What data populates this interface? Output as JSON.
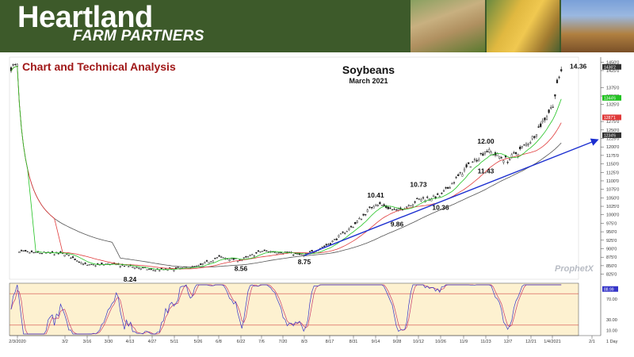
{
  "header": {
    "brand_line1": "Heartland",
    "brand_line2": "FARM PARTNERS",
    "section_title": "Chart and Technical Analysis"
  },
  "colors": {
    "banner": "#3d5a2a",
    "section_title": "#a01818",
    "price_bar": "#1a1a1a",
    "ma_green": "#22c322",
    "ma_red": "#e03a3a",
    "ma_gray": "#555555",
    "trendline": "#1c2fd0",
    "oscillator_bg": "#fdf1d0",
    "stoch_k": "#3535c8",
    "stoch_d": "#c83a6a"
  },
  "chart_data": [
    {
      "type": "candlestick",
      "title": "Soybeans",
      "subtitle": "March 2021",
      "y_unit": "cents per bushel",
      "ylim": [
        810,
        1460
      ],
      "y_ticks": [
        "825'0",
        "850'0",
        "875'0",
        "900'0",
        "925'0",
        "950'0",
        "975'0",
        "1000'0",
        "1025'0",
        "1050'0",
        "1075'0",
        "1100'0",
        "1125'0",
        "1150'0",
        "1175'0",
        "1200'0",
        "1225'0",
        "1250'0",
        "1275'0",
        "1325'0",
        "1350'0",
        "1375'0",
        "1425'0",
        "1450'0"
      ],
      "x_ticks": [
        "2/3/2020",
        "3/2",
        "3/16",
        "3/30",
        "4/13",
        "4/27",
        "5/11",
        "5/26",
        "6/8",
        "6/22",
        "7/6",
        "7/20",
        "8/3",
        "8/17",
        "8/31",
        "9/14",
        "9/28",
        "10/12",
        "10/26",
        "11/9",
        "11/23",
        "12/7",
        "12/21",
        "1/4/2021",
        "2/1"
      ],
      "x_axis_note": "1 Day",
      "closes_keypoints": [
        {
          "label": "2/3/2020",
          "value": 890
        },
        {
          "label": "3/2",
          "value": 885
        },
        {
          "label": "3/16",
          "value": 850
        },
        {
          "label": "3/30",
          "value": 855
        },
        {
          "label": "4/13",
          "value": 848
        },
        {
          "label": "4/27",
          "value": 837
        },
        {
          "label": "5/11",
          "value": 840
        },
        {
          "label": "5/26",
          "value": 848
        },
        {
          "label": "6/8",
          "value": 875
        },
        {
          "label": "6/22",
          "value": 866
        },
        {
          "label": "7/6",
          "value": 893
        },
        {
          "label": "7/20",
          "value": 890
        },
        {
          "label": "8/3",
          "value": 880
        },
        {
          "label": "8/17",
          "value": 915
        },
        {
          "label": "8/31",
          "value": 968
        },
        {
          "label": "9/14",
          "value": 1035
        },
        {
          "label": "9/28",
          "value": 1010
        },
        {
          "label": "10/12",
          "value": 1045
        },
        {
          "label": "10/26",
          "value": 1055
        },
        {
          "label": "11/9",
          "value": 1130
        },
        {
          "label": "11/23",
          "value": 1190
        },
        {
          "label": "12/7",
          "value": 1160
        },
        {
          "label": "12/21",
          "value": 1220
        },
        {
          "label": "1/4/2021",
          "value": 1320
        },
        {
          "label": "latest",
          "value": 1436
        }
      ],
      "moving_average_end_values": {
        "green": 1344.6,
        "red": 1287.1,
        "gray": 1234.6
      },
      "price_tags": [
        {
          "text": "1436'2",
          "value": 1436,
          "bg": "#333333",
          "fg": "#ffffff"
        },
        {
          "text": "1344'6",
          "value": 1344.6,
          "bg": "#22c322",
          "fg": "#ffffff"
        },
        {
          "text": "1287'1",
          "value": 1287.1,
          "bg": "#e03a3a",
          "fg": "#ffffff"
        },
        {
          "text": "1234'6",
          "value": 1234.6,
          "bg": "#333333",
          "fg": "#ffffff"
        }
      ],
      "annotations": [
        {
          "text": "8.24",
          "x_label": "4/13",
          "price": 824,
          "pos": "below"
        },
        {
          "text": "8.56",
          "x_label": "6/22",
          "price": 856,
          "pos": "below"
        },
        {
          "text": "8.75",
          "x_label": "8/3",
          "price": 875,
          "pos": "below"
        },
        {
          "text": "10.41",
          "x_label": "9/14",
          "price": 1041,
          "pos": "above"
        },
        {
          "text": "9.86",
          "x_label": "9/28",
          "price": 986,
          "pos": "below"
        },
        {
          "text": "10.73",
          "x_label": "10/12",
          "price": 1073,
          "pos": "above"
        },
        {
          "text": "10.36",
          "x_label": "10/26",
          "price": 1036,
          "pos": "below"
        },
        {
          "text": "12.00",
          "x_label": "11/23",
          "price": 1200,
          "pos": "above"
        },
        {
          "text": "11.43",
          "x_label": "11/23",
          "price": 1143,
          "pos": "below"
        },
        {
          "text": "14.36",
          "x_label": "latest",
          "price": 1436,
          "pos": "right"
        }
      ],
      "trendline": {
        "from": {
          "x_label": "8/3",
          "price": 880
        },
        "to": {
          "x_label": "2/1",
          "price": 1220
        }
      }
    },
    {
      "type": "line",
      "name": "stochastic",
      "ylim": [
        0,
        100
      ],
      "y_ticks": [
        "10.00",
        "30.00",
        "70.00"
      ],
      "reference_lines": [
        80,
        20
      ],
      "current_value_tag": "88.99",
      "current_value": 88.99
    }
  ],
  "watermark": "ProphetX"
}
